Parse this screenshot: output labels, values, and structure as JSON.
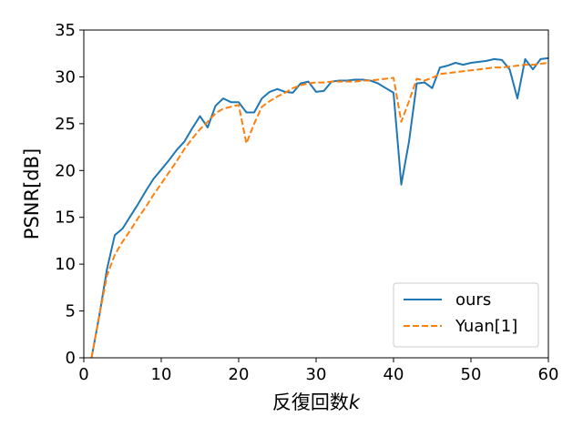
{
  "chart_data": {
    "type": "line",
    "title": "",
    "xlabel": "反復回数",
    "xlabel_var": "k",
    "ylabel": "PSNR[dB]",
    "xlim": [
      0,
      60
    ],
    "ylim": [
      0,
      35
    ],
    "xticks": [
      "0",
      "10",
      "20",
      "30",
      "40",
      "50",
      "60"
    ],
    "yticks": [
      "0",
      "5",
      "10",
      "15",
      "20",
      "25",
      "30",
      "35"
    ],
    "grid": false,
    "legend_position": "lower-right",
    "series": [
      {
        "name": "ours",
        "color": "#1f77b4",
        "style": "solid",
        "x": [
          1,
          2,
          3,
          4,
          5,
          6,
          7,
          8,
          9,
          10,
          11,
          12,
          13,
          14,
          15,
          16,
          17,
          18,
          19,
          20,
          21,
          22,
          23,
          24,
          25,
          26,
          27,
          28,
          29,
          30,
          31,
          32,
          33,
          34,
          35,
          36,
          37,
          38,
          39,
          40,
          41,
          42,
          43,
          44,
          45,
          46,
          47,
          48,
          49,
          50,
          51,
          52,
          53,
          54,
          55,
          56,
          57,
          58,
          59,
          60
        ],
        "y": [
          0,
          4.5,
          9.5,
          13.1,
          13.8,
          15.1,
          16.4,
          17.8,
          19.1,
          20.1,
          21.1,
          22.2,
          23.1,
          24.5,
          25.8,
          24.6,
          26.9,
          27.7,
          27.3,
          27.3,
          26.2,
          26.2,
          27.7,
          28.4,
          28.7,
          28.4,
          28.3,
          29.3,
          29.5,
          28.4,
          28.5,
          29.5,
          29.6,
          29.6,
          29.7,
          29.7,
          29.6,
          29.3,
          28.8,
          28.3,
          18.5,
          23.1,
          29.3,
          29.4,
          28.8,
          31.0,
          31.2,
          31.5,
          31.3,
          31.5,
          31.6,
          31.7,
          31.9,
          31.8,
          30.8,
          27.7,
          31.9,
          30.8,
          31.9,
          32.0
        ]
      },
      {
        "name": "Yuan[1]",
        "color": "#ff7f0e",
        "style": "dashed",
        "x": [
          1,
          2,
          3,
          4,
          5,
          6,
          7,
          8,
          9,
          10,
          11,
          12,
          13,
          14,
          15,
          16,
          17,
          18,
          19,
          20,
          21,
          22,
          23,
          24,
          25,
          26,
          27,
          28,
          29,
          30,
          31,
          32,
          33,
          34,
          35,
          36,
          37,
          38,
          39,
          40,
          41,
          42,
          43,
          44,
          45,
          46,
          47,
          48,
          49,
          50,
          51,
          52,
          53,
          54,
          55,
          56,
          57,
          58,
          59,
          60
        ],
        "y": [
          0,
          4.5,
          8.8,
          11.0,
          12.4,
          13.6,
          14.9,
          16.1,
          17.4,
          18.6,
          19.8,
          21.0,
          22.3,
          23.4,
          24.4,
          25.2,
          26.1,
          26.6,
          26.8,
          27.0,
          22.9,
          25.0,
          26.8,
          27.4,
          27.9,
          28.3,
          28.8,
          29.1,
          29.3,
          29.4,
          29.4,
          29.5,
          29.5,
          29.5,
          29.5,
          29.6,
          29.6,
          29.7,
          29.8,
          29.9,
          25.2,
          27.4,
          29.8,
          29.6,
          29.9,
          30.3,
          30.4,
          30.5,
          30.6,
          30.7,
          30.8,
          30.9,
          31.0,
          31.0,
          31.1,
          31.2,
          31.3,
          31.3,
          31.4,
          31.5
        ]
      }
    ]
  }
}
